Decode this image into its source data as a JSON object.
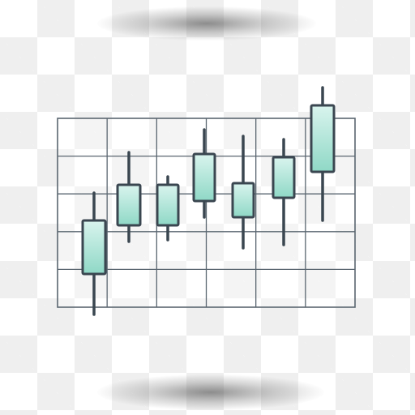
{
  "illustration": {
    "subject": "candlestick-chart-icon",
    "colors": {
      "stroke": "#3a4650",
      "grid": "#5a6670",
      "candle_fill_top": "#d9f4ee",
      "candle_fill_bottom": "#8fd8c6",
      "checker": "#efefef",
      "background": "#ffffff"
    },
    "grid": {
      "columns": 6,
      "rows": 5
    },
    "candles": [
      {
        "open": 0.25,
        "close": 0.58,
        "low": 0.0,
        "high": 0.75
      },
      {
        "open": 0.55,
        "close": 0.8,
        "low": 0.45,
        "high": 1.0
      },
      {
        "open": 0.55,
        "close": 0.8,
        "low": 0.46,
        "high": 0.85
      },
      {
        "open": 0.7,
        "close": 0.99,
        "low": 0.6,
        "high": 1.14
      },
      {
        "open": 0.6,
        "close": 0.81,
        "low": 0.41,
        "high": 1.1
      },
      {
        "open": 0.72,
        "close": 0.97,
        "low": 0.43,
        "high": 1.08
      },
      {
        "open": 0.88,
        "close": 1.29,
        "low": 0.58,
        "high": 1.4
      }
    ]
  }
}
